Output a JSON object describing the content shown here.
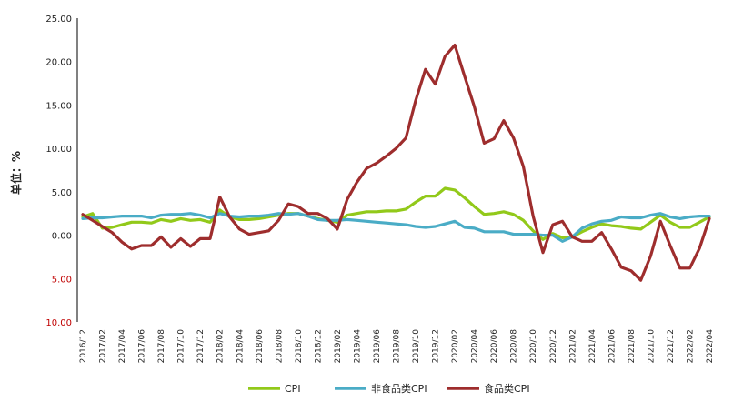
{
  "chart_data": {
    "type": "line",
    "title": "",
    "ylabel": "单位：%",
    "xlabel": "",
    "ylim": [
      -10,
      25
    ],
    "yticks": [
      25,
      20,
      15,
      10,
      5,
      0,
      -5,
      -10
    ],
    "ytick_labels": [
      "25.00",
      "20.00",
      "15.00",
      "10.00",
      "5.00",
      "0.00",
      "5.00",
      "10.00"
    ],
    "negative_tick_color": "#c00000",
    "grid": false,
    "legend_position": "bottom",
    "x": [
      "2016/12",
      "2017/01",
      "2017/02",
      "2017/03",
      "2017/04",
      "2017/05",
      "2017/06",
      "2017/07",
      "2017/08",
      "2017/09",
      "2017/10",
      "2017/11",
      "2017/12",
      "2018/01",
      "2018/02",
      "2018/03",
      "2018/04",
      "2018/05",
      "2018/06",
      "2018/07",
      "2018/08",
      "2018/09",
      "2018/10",
      "2018/11",
      "2018/12",
      "2019/01",
      "2019/02",
      "2019/03",
      "2019/04",
      "2019/05",
      "2019/06",
      "2019/07",
      "2019/08",
      "2019/09",
      "2019/10",
      "2019/11",
      "2019/12",
      "2020/01",
      "2020/02",
      "2020/03",
      "2020/04",
      "2020/05",
      "2020/06",
      "2020/07",
      "2020/08",
      "2020/09",
      "2020/10",
      "2020/11",
      "2020/12",
      "2021/01",
      "2021/02",
      "2021/03",
      "2021/04",
      "2021/05",
      "2021/06",
      "2021/07",
      "2021/08",
      "2021/09",
      "2021/10",
      "2021/11",
      "2021/12",
      "2022/01",
      "2022/02",
      "2022/03",
      "2022/04"
    ],
    "xtick_labels": [
      "2016/12",
      "2017/02",
      "2017/04",
      "2017/06",
      "2017/08",
      "2017/10",
      "2017/12",
      "2018/02",
      "2018/04",
      "2018/06",
      "2018/08",
      "2018/10",
      "2018/12",
      "2019/02",
      "2019/04",
      "2019/06",
      "2019/08",
      "2019/10",
      "2019/12",
      "2020/02",
      "2020/04",
      "2020/06",
      "2020/08",
      "2020/10",
      "2020/12",
      "2021/02",
      "2021/04",
      "2021/06",
      "2021/08",
      "2021/10",
      "2021/12",
      "2022/02",
      "2022/04"
    ],
    "series": [
      {
        "name": "CPI",
        "color": "#92c91a",
        "values": [
          2.1,
          2.5,
          0.8,
          0.9,
          1.2,
          1.5,
          1.5,
          1.4,
          1.8,
          1.6,
          1.9,
          1.7,
          1.8,
          1.5,
          2.9,
          2.1,
          1.8,
          1.8,
          1.9,
          2.1,
          2.3,
          2.5,
          2.5,
          2.2,
          1.9,
          1.7,
          1.5,
          2.3,
          2.5,
          2.7,
          2.7,
          2.8,
          2.8,
          3.0,
          3.8,
          4.5,
          4.5,
          5.4,
          5.2,
          4.3,
          3.3,
          2.4,
          2.5,
          2.7,
          2.4,
          1.7,
          0.5,
          -0.5,
          0.2,
          -0.3,
          -0.2,
          0.4,
          0.9,
          1.3,
          1.1,
          1.0,
          0.8,
          0.7,
          1.5,
          2.3,
          1.5,
          0.9,
          0.9,
          1.5,
          2.1
        ]
      },
      {
        "name": "非食品类CPI",
        "color": "#4aacc6",
        "values": [
          1.9,
          2.0,
          2.0,
          2.1,
          2.2,
          2.2,
          2.2,
          2.0,
          2.3,
          2.4,
          2.4,
          2.5,
          2.3,
          2.0,
          2.5,
          2.2,
          2.1,
          2.2,
          2.2,
          2.3,
          2.5,
          2.4,
          2.5,
          2.2,
          1.8,
          1.7,
          1.7,
          1.8,
          1.7,
          1.6,
          1.5,
          1.4,
          1.3,
          1.2,
          1.0,
          0.9,
          1.0,
          1.3,
          1.6,
          0.9,
          0.8,
          0.4,
          0.4,
          0.4,
          0.1,
          0.1,
          0.1,
          0.0,
          0.0,
          -0.7,
          -0.2,
          0.8,
          1.3,
          1.6,
          1.7,
          2.1,
          2.0,
          2.0,
          2.3,
          2.5,
          2.1,
          1.9,
          2.1,
          2.2,
          2.2
        ]
      },
      {
        "name": "食品类CPI",
        "color": "#9e2d2d",
        "values": [
          2.4,
          1.7,
          1.0,
          0.3,
          -0.8,
          -1.6,
          -1.2,
          -1.2,
          -0.2,
          -1.4,
          -0.4,
          -1.3,
          -0.4,
          -0.4,
          4.4,
          2.1,
          0.7,
          0.1,
          0.3,
          0.5,
          1.7,
          3.6,
          3.3,
          2.5,
          2.5,
          1.9,
          0.7,
          4.1,
          6.1,
          7.7,
          8.3,
          9.1,
          10.0,
          11.2,
          15.5,
          19.1,
          17.4,
          20.6,
          21.9,
          18.3,
          14.8,
          10.6,
          11.1,
          13.2,
          11.2,
          7.9,
          2.2,
          -2.0,
          1.2,
          1.6,
          -0.2,
          -0.7,
          -0.7,
          0.3,
          -1.6,
          -3.7,
          -4.1,
          -5.2,
          -2.4,
          1.6,
          -1.2,
          -3.8,
          -3.8,
          -1.5,
          1.9
        ]
      }
    ]
  }
}
